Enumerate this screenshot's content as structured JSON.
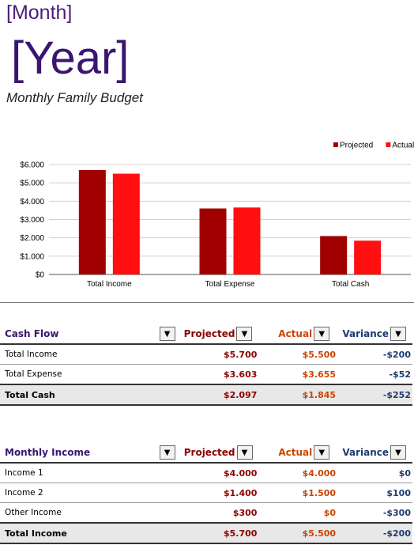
{
  "header": {
    "month": "[Month]",
    "year": "[Year]",
    "subtitle": "Monthly Family Budget"
  },
  "colors": {
    "projected": "#a00000",
    "actual": "#ff0f0f",
    "heading": "#3a1670"
  },
  "chart_data": {
    "type": "bar",
    "categories": [
      "Total Income",
      "Total Expense",
      "Total Cash"
    ],
    "series": [
      {
        "name": "Projected",
        "values": [
          5700,
          3603,
          2097
        ]
      },
      {
        "name": "Actual",
        "values": [
          5500,
          3655,
          1845
        ]
      }
    ],
    "y_ticks": [
      "$0",
      "$1.000",
      "$2.000",
      "$3.000",
      "$4.000",
      "$5.000",
      "$6.000"
    ],
    "ylim": [
      0,
      6000
    ],
    "grid": true,
    "legend_position": "top-right"
  },
  "cash_flow": {
    "title": "Cash Flow",
    "col_projected": "Projected",
    "col_actual": "Actual",
    "col_variance": "Variance",
    "dropdown": "▼",
    "rows": [
      {
        "label": "Total Income",
        "projected": "$5.700",
        "actual": "$5.500",
        "variance": "-$200"
      },
      {
        "label": "Total Expense",
        "projected": "$3.603",
        "actual": "$3.655",
        "variance": "-$52"
      }
    ],
    "total": {
      "label": "Total Cash",
      "projected": "$2.097",
      "actual": "$1.845",
      "variance": "-$252"
    }
  },
  "monthly_income": {
    "title": "Monthly Income",
    "col_projected": "Projected",
    "col_actual": "Actual",
    "col_variance": "Variance",
    "dropdown": "▼",
    "rows": [
      {
        "label": "Income 1",
        "projected": "$4.000",
        "actual": "$4.000",
        "variance": "$0"
      },
      {
        "label": "Income 2",
        "projected": "$1.400",
        "actual": "$1.500",
        "variance": "$100"
      },
      {
        "label": "Other Income",
        "projected": "$300",
        "actual": "$0",
        "variance": "-$300"
      }
    ],
    "total": {
      "label": "Total Income",
      "projected": "$5.700",
      "actual": "$5.500",
      "variance": "-$200"
    }
  }
}
